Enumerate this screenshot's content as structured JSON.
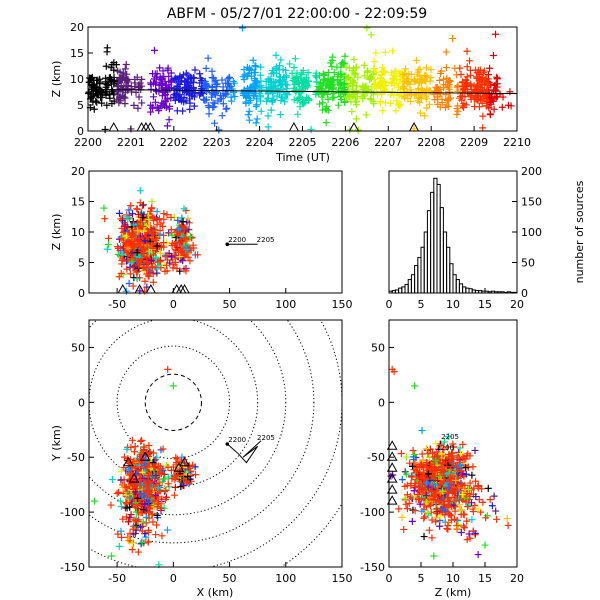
{
  "title": "ABFM - 05/27/01 22:00:00 - 22:09:59",
  "colors": {
    "time_scale": [
      "#000000",
      "#5a1f7a",
      "#6a00c8",
      "#1a1adc",
      "#2060ff",
      "#00a0ff",
      "#00d0d0",
      "#00e0a0",
      "#20e020",
      "#a0f000",
      "#f0f000",
      "#ffc000",
      "#ff8000",
      "#ff3000",
      "#e00000"
    ],
    "track": "#000000",
    "station": "#000000"
  },
  "chart_data": [
    {
      "name": "z-vs-time",
      "type": "scatter",
      "title": "",
      "xlabel": "Time (UT)",
      "ylabel": "Z (km)",
      "xlim": [
        2200,
        2210
      ],
      "ylim": [
        0,
        20
      ],
      "xticks": [
        2200,
        2201,
        2202,
        2203,
        2204,
        2205,
        2206,
        2207,
        2208,
        2209,
        2210
      ],
      "yticks": [
        0,
        5,
        10,
        15,
        20
      ],
      "clusters": [
        {
          "t": [
            2200.0,
            2200.35
          ],
          "z_mean": 8.2,
          "z_sd": 1.6,
          "n": 55
        },
        {
          "t": [
            2200.4,
            2200.95
          ],
          "z_mean": 8.5,
          "z_sd": 2.0,
          "n": 90
        },
        {
          "t": [
            2201.0,
            2201.3
          ],
          "z_mean": 7.5,
          "z_sd": 1.5,
          "n": 20
        },
        {
          "t": [
            2201.45,
            2201.95
          ],
          "z_mean": 8.4,
          "z_sd": 2.2,
          "n": 75
        },
        {
          "t": [
            2202.0,
            2202.5
          ],
          "z_mean": 7.9,
          "z_sd": 2.0,
          "n": 85
        },
        {
          "t": [
            2202.6,
            2203.0
          ],
          "z_mean": 7.5,
          "z_sd": 1.8,
          "n": 55
        },
        {
          "t": [
            2203.0,
            2203.45
          ],
          "z_mean": 7.6,
          "z_sd": 1.6,
          "n": 35
        },
        {
          "t": [
            2203.6,
            2204.05
          ],
          "z_mean": 8.0,
          "z_sd": 2.3,
          "n": 80
        },
        {
          "t": [
            2204.15,
            2204.65
          ],
          "z_mean": 8.2,
          "z_sd": 1.9,
          "n": 85
        },
        {
          "t": [
            2204.75,
            2205.15
          ],
          "z_mean": 8.6,
          "z_sd": 2.1,
          "n": 70
        },
        {
          "t": [
            2205.3,
            2205.75
          ],
          "z_mean": 8.0,
          "z_sd": 2.2,
          "n": 75
        },
        {
          "t": [
            2205.8,
            2206.3
          ],
          "z_mean": 8.6,
          "z_sd": 2.5,
          "n": 85
        },
        {
          "t": [
            2206.4,
            2206.95
          ],
          "z_mean": 8.8,
          "z_sd": 2.2,
          "n": 80
        },
        {
          "t": [
            2207.05,
            2207.55
          ],
          "z_mean": 8.6,
          "z_sd": 1.9,
          "n": 70
        },
        {
          "t": [
            2207.6,
            2208.0
          ],
          "z_mean": 8.5,
          "z_sd": 1.8,
          "n": 55
        },
        {
          "t": [
            2208.05,
            2208.45
          ],
          "z_mean": 8.0,
          "z_sd": 1.7,
          "n": 45
        },
        {
          "t": [
            2208.55,
            2208.95
          ],
          "z_mean": 8.3,
          "z_sd": 2.0,
          "n": 55
        },
        {
          "t": [
            2209.0,
            2209.55
          ],
          "z_mean": 8.0,
          "z_sd": 2.4,
          "n": 110
        },
        {
          "t": [
            2209.6,
            2210.0
          ],
          "z_mean": 6.2,
          "z_sd": 1.0,
          "n": 6
        }
      ],
      "outliers": [
        [
          2203.6,
          19.8
        ],
        [
          2206.5,
          19.8
        ],
        [
          2206.6,
          18.5
        ],
        [
          2208.5,
          17.8
        ],
        [
          2209.5,
          18.6
        ],
        [
          2200.45,
          16.0
        ],
        [
          2201.55,
          15.5
        ],
        [
          2202.8,
          14.0
        ],
        [
          2203.85,
          13.6
        ],
        [
          2204.7,
          12.9
        ],
        [
          2205.7,
          14.2
        ],
        [
          2207.1,
          15.4
        ],
        [
          2208.35,
          15.2
        ],
        [
          2200.4,
          0.3
        ],
        [
          2201.0,
          0.4
        ],
        [
          2202.95,
          1.5
        ],
        [
          2203.05,
          0.2
        ],
        [
          2204.2,
          0.8
        ],
        [
          2205.2,
          0.3
        ],
        [
          2206.1,
          0.2
        ],
        [
          2206.3,
          0.2
        ],
        [
          2207.6,
          0.4
        ],
        [
          2209.2,
          0.6
        ]
      ],
      "fit_line": {
        "x": [
          2200,
          2210
        ],
        "y": [
          8.0,
          7.2
        ]
      },
      "station_times": [
        2200.6,
        2201.25,
        2201.35,
        2201.45,
        2204.8,
        2206.2,
        2207.6
      ]
    },
    {
      "name": "z-vs-x",
      "type": "scatter",
      "title": "",
      "xlabel": "",
      "ylabel": "Z (km)",
      "xlim": [
        -75,
        150
      ],
      "ylim": [
        0,
        20
      ],
      "xticks": [
        -50,
        0,
        50,
        100,
        150
      ],
      "yticks": [
        0,
        5,
        10,
        15,
        20
      ],
      "clusters": [
        {
          "x_mean": -28,
          "x_sd": 10,
          "z_mean": 8.0,
          "z_sd": 2.6,
          "n": 600
        },
        {
          "x_mean": 8,
          "x_sd": 5,
          "z_mean": 8.0,
          "z_sd": 2.0,
          "n": 150
        }
      ],
      "track": {
        "x": [
          48,
          75
        ],
        "z": [
          8.0,
          8.0
        ]
      },
      "track_labels": {
        "start": "2200",
        "end": "2205"
      },
      "stations": [
        -45,
        -30,
        -20,
        3,
        7,
        10
      ]
    },
    {
      "name": "source-height-histogram",
      "type": "bar",
      "title": "",
      "xlabel": "",
      "ylabel": "number of sources",
      "xlim": [
        0,
        20
      ],
      "ylim": [
        0,
        200
      ],
      "xticks": [
        0,
        5,
        10,
        15,
        20
      ],
      "yticks": [
        0,
        50,
        100,
        150,
        200
      ],
      "bin_width": 0.5,
      "x": [
        0.25,
        0.75,
        1.25,
        1.75,
        2.25,
        2.75,
        3.25,
        3.75,
        4.25,
        4.75,
        5.25,
        5.75,
        6.25,
        6.75,
        7.25,
        7.75,
        8.25,
        8.75,
        9.25,
        9.75,
        10.25,
        10.75,
        11.25,
        11.75,
        12.25,
        12.75,
        13.25,
        13.75,
        14.25,
        14.75,
        15.25,
        15.75,
        16.25,
        16.75,
        17.25,
        17.75,
        18.25,
        18.75,
        19.25,
        19.75
      ],
      "values": [
        3,
        4,
        5,
        8,
        10,
        14,
        22,
        30,
        45,
        58,
        75,
        100,
        135,
        165,
        188,
        178,
        140,
        100,
        75,
        48,
        30,
        22,
        15,
        10,
        8,
        7,
        5,
        4,
        4,
        3,
        3,
        2,
        3,
        2,
        2,
        2,
        1,
        2,
        1,
        1
      ]
    },
    {
      "name": "plan-view",
      "type": "scatter",
      "title": "",
      "xlabel": "X (km)",
      "ylabel": "Y (km)",
      "xlim": [
        -75,
        150
      ],
      "ylim": [
        -150,
        75
      ],
      "xticks": [
        -50,
        0,
        50,
        100,
        150
      ],
      "yticks": [
        -150,
        -100,
        -50,
        0,
        50
      ],
      "ring_radii": [
        25,
        50,
        75,
        100,
        125,
        150,
        175
      ],
      "clusters": [
        {
          "x_mean": -27,
          "x_sd": 9,
          "y_mean": -75,
          "y_sd": 14,
          "n": 600
        },
        {
          "x_mean": 8,
          "x_sd": 5,
          "y_mean": -65,
          "y_sd": 6,
          "n": 110
        },
        {
          "x_mean": -30,
          "x_sd": 10,
          "y_mean": -120,
          "y_sd": 10,
          "n": 40
        }
      ],
      "extra_points": [
        [
          -5,
          30
        ],
        [
          0,
          15
        ],
        [
          -70,
          -90
        ],
        [
          -55,
          -140
        ]
      ],
      "track": {
        "x": [
          48,
          58,
          65,
          75,
          62,
          78
        ],
        "y": [
          -38,
          -47,
          -55,
          -40,
          -50,
          -35
        ]
      },
      "track_labels": {
        "start": "2200",
        "end": "2205"
      },
      "stations": [
        [
          -40,
          -55
        ],
        [
          -35,
          -70
        ],
        [
          -25,
          -50
        ],
        [
          5,
          -60
        ],
        [
          10,
          -55
        ]
      ]
    },
    {
      "name": "y-vs-z",
      "type": "scatter",
      "title": "",
      "xlabel": "Z (km)",
      "ylabel": "",
      "xlim": [
        0,
        20
      ],
      "ylim": [
        -150,
        75
      ],
      "xticks": [
        0,
        5,
        10,
        15,
        20
      ],
      "yticks": [
        -150,
        -100,
        -50,
        0,
        50
      ],
      "clusters": [
        {
          "z_mean": 8.0,
          "z_sd": 2.5,
          "y_mean": -72,
          "y_sd": 16,
          "n": 650
        },
        {
          "z_mean": 11,
          "z_sd": 3.5,
          "y_mean": -100,
          "y_sd": 15,
          "n": 80
        }
      ],
      "extra_points": [
        [
          0.5,
          30
        ],
        [
          0.8,
          28
        ],
        [
          4,
          15
        ],
        [
          7,
          -140
        ],
        [
          15,
          -130
        ]
      ],
      "track": {
        "z": [
          8.0,
          8.0
        ],
        "y": [
          -38,
          -35
        ]
      },
      "track_labels": {
        "start": "2200",
        "end": "2205"
      },
      "stations": [
        [
          0.5,
          -40
        ],
        [
          0.5,
          -50
        ],
        [
          0.5,
          -60
        ],
        [
          0.5,
          -70
        ],
        [
          0.5,
          -80
        ],
        [
          0.5,
          -90
        ]
      ]
    }
  ]
}
